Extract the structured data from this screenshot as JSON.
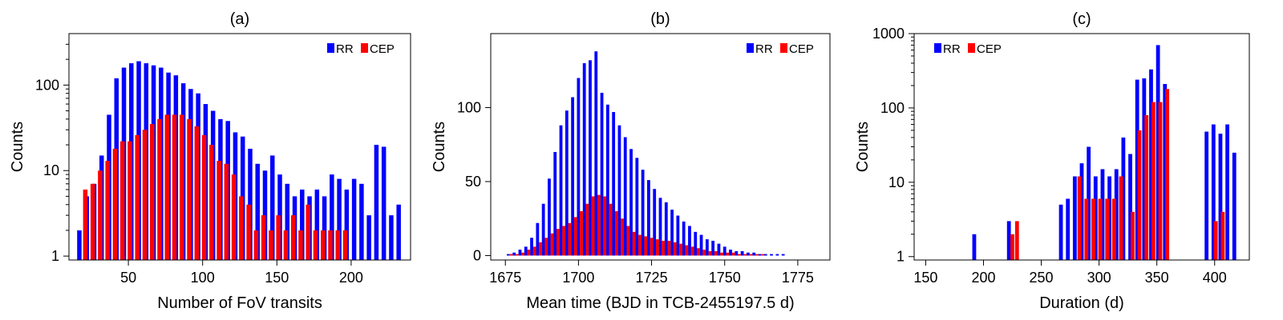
{
  "colors": {
    "RR": "#0000ff",
    "CEP": "#ff0000"
  },
  "chart_data": [
    {
      "type": "bar",
      "title": "(a)",
      "xlabel": "Number of FoV transits",
      "ylabel": "Counts",
      "yscale": "log",
      "xlim": [
        10,
        240
      ],
      "ylim": [
        0.9,
        400
      ],
      "xticks": [
        50,
        100,
        150,
        200
      ],
      "yticks": [
        1,
        10,
        100
      ],
      "legend": {
        "position": "top-right",
        "entries": [
          "RR",
          "CEP"
        ]
      },
      "series": [
        {
          "name": "RR",
          "x": [
            17,
            22,
            27,
            32,
            37,
            42,
            47,
            52,
            57,
            62,
            67,
            72,
            77,
            82,
            87,
            92,
            97,
            102,
            107,
            112,
            117,
            122,
            127,
            132,
            137,
            142,
            147,
            152,
            157,
            162,
            167,
            172,
            177,
            182,
            187,
            192,
            197,
            202,
            207,
            212,
            217,
            222,
            227,
            232
          ],
          "values": [
            2,
            5,
            7,
            15,
            45,
            120,
            160,
            180,
            190,
            180,
            170,
            160,
            140,
            130,
            105,
            90,
            80,
            60,
            50,
            40,
            38,
            28,
            25,
            18,
            12,
            10,
            15,
            9,
            7,
            5,
            6,
            5,
            6,
            5,
            9,
            8,
            6,
            8,
            7,
            3,
            20,
            19,
            3,
            4
          ]
        },
        {
          "name": "CEP",
          "x": [
            21,
            26,
            31,
            36,
            41,
            46,
            51,
            56,
            61,
            66,
            71,
            76,
            81,
            86,
            91,
            96,
            101,
            106,
            111,
            116,
            121,
            126,
            131,
            136,
            141,
            146,
            151,
            156,
            161,
            166,
            171,
            176,
            181,
            186,
            191,
            196
          ],
          "values": [
            6,
            7,
            10,
            13,
            18,
            22,
            22,
            26,
            30,
            35,
            40,
            45,
            45,
            45,
            40,
            33,
            26,
            20,
            13,
            12,
            9,
            5,
            4,
            2,
            3,
            2,
            3,
            2,
            3,
            2,
            4,
            2,
            2,
            2,
            2,
            2
          ]
        }
      ]
    },
    {
      "type": "bar",
      "title": "(b)",
      "xlabel": "Mean time (BJD in TCB-2455197.5 d)",
      "ylabel": "Counts",
      "yscale": "linear",
      "xlim": [
        1670,
        1786
      ],
      "ylim": [
        -3,
        150
      ],
      "xticks": [
        1675,
        1700,
        1725,
        1750,
        1775
      ],
      "yticks": [
        0,
        50,
        100
      ],
      "legend": {
        "position": "top-right",
        "entries": [
          "RR",
          "CEP"
        ]
      },
      "series": [
        {
          "name": "RR",
          "x": [
            1676,
            1678,
            1680,
            1682,
            1684,
            1686,
            1688,
            1690,
            1692,
            1694,
            1696,
            1698,
            1700,
            1702,
            1704,
            1706,
            1708,
            1710,
            1712,
            1714,
            1716,
            1718,
            1720,
            1722,
            1724,
            1726,
            1728,
            1730,
            1732,
            1734,
            1736,
            1738,
            1740,
            1742,
            1744,
            1746,
            1748,
            1750,
            1752,
            1754,
            1756,
            1758,
            1760,
            1762,
            1764,
            1766,
            1768,
            1770,
            1772,
            1774,
            1776,
            1778,
            1780,
            1782,
            1784
          ],
          "values": [
            1,
            2,
            4,
            6,
            12,
            22,
            35,
            52,
            70,
            88,
            98,
            107,
            120,
            130,
            132,
            138,
            110,
            102,
            97,
            88,
            80,
            72,
            66,
            58,
            51,
            45,
            39,
            36,
            31,
            27,
            23,
            20,
            16,
            14,
            11,
            10,
            8,
            6,
            4,
            3,
            3,
            2,
            2,
            1,
            1,
            1,
            1,
            1,
            0,
            0,
            0,
            0,
            0,
            0,
            0
          ]
        },
        {
          "name": "CEP",
          "x": [
            1677,
            1679,
            1681,
            1683,
            1685,
            1687,
            1689,
            1691,
            1693,
            1695,
            1697,
            1699,
            1701,
            1703,
            1705,
            1707,
            1709,
            1711,
            1713,
            1715,
            1717,
            1719,
            1721,
            1723,
            1725,
            1727,
            1729,
            1731,
            1733,
            1735,
            1737,
            1739,
            1741,
            1743,
            1745,
            1747,
            1749,
            1751,
            1753,
            1755,
            1757,
            1759,
            1761,
            1763,
            1765,
            1767,
            1769,
            1771
          ],
          "values": [
            1,
            1,
            2,
            4,
            6,
            9,
            12,
            15,
            18,
            20,
            22,
            26,
            30,
            35,
            40,
            41,
            40,
            35,
            30,
            25,
            20,
            16,
            14,
            13,
            12,
            11,
            10,
            10,
            9,
            8,
            7,
            6,
            5,
            4,
            3,
            3,
            2,
            2,
            2,
            1,
            1,
            1,
            1,
            1,
            0,
            0,
            0,
            0
          ]
        }
      ]
    },
    {
      "type": "bar",
      "title": "(c)",
      "xlabel": "Duration (d)",
      "ylabel": "Counts",
      "yscale": "log",
      "xlim": [
        140,
        430
      ],
      "ylim": [
        0.9,
        1000
      ],
      "xticks": [
        150,
        200,
        250,
        300,
        350,
        400
      ],
      "yticks": [
        1,
        10,
        100,
        1000
      ],
      "legend": {
        "position": "top-left",
        "entries": [
          "RR",
          "CEP"
        ]
      },
      "series": [
        {
          "name": "RR",
          "x": [
            192,
            222,
            267,
            273,
            279,
            285,
            291,
            297,
            303,
            309,
            315,
            321,
            327,
            333,
            339,
            345,
            351,
            357,
            393,
            399,
            405,
            411,
            417
          ],
          "values": [
            2,
            3,
            5,
            6,
            12,
            18,
            30,
            12,
            15,
            12,
            15,
            40,
            24,
            240,
            250,
            330,
            700,
            210,
            48,
            60,
            45,
            60,
            25
          ]
        },
        {
          "name": "CEP",
          "x": [
            225,
            229,
            283,
            289,
            295,
            301,
            307,
            313,
            319,
            329,
            335,
            341,
            347,
            353,
            359,
            401,
            407
          ],
          "values": [
            2,
            3,
            12,
            6,
            6,
            6,
            6,
            6,
            12,
            4,
            50,
            80,
            120,
            120,
            180,
            3,
            4
          ]
        }
      ]
    }
  ]
}
